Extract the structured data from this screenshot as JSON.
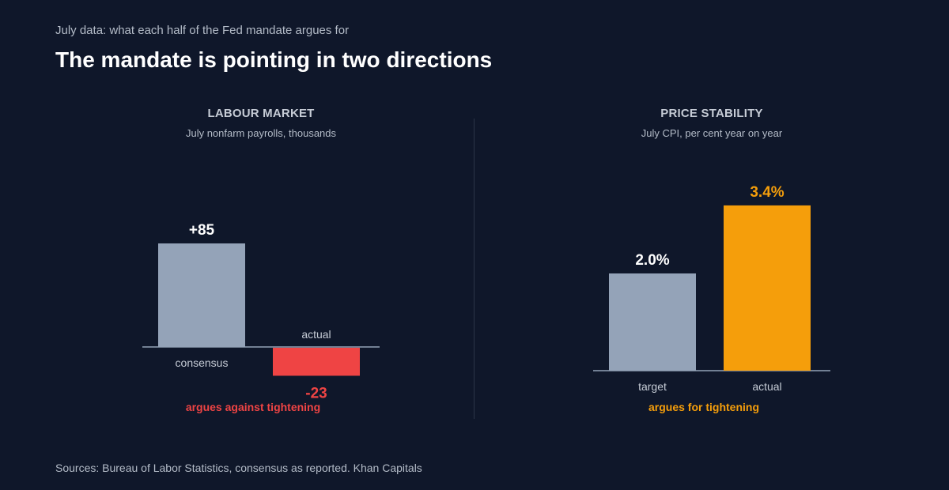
{
  "header": {
    "kicker": "July data: what each half of the Fed mandate argues for",
    "title": "The mandate is pointing in two directions"
  },
  "colors": {
    "background": "#0f172a",
    "neutral_bar": "#94a3b8",
    "negative": "#ef4444",
    "positive": "#f59e0b"
  },
  "chart_data": [
    {
      "type": "bar",
      "title": "LABOUR MARKET",
      "subtitle": "July nonfarm payrolls, thousands",
      "categories": [
        "consensus",
        "actual"
      ],
      "values": [
        85,
        -23
      ],
      "value_labels": [
        "+85",
        "-23"
      ],
      "bar_colors": [
        "#94a3b8",
        "#ef4444"
      ],
      "label_colors": [
        "#ffffff",
        "#ef4444"
      ],
      "verdict": "argues against tightening",
      "verdict_color": "#ef4444"
    },
    {
      "type": "bar",
      "title": "PRICE STABILITY",
      "subtitle": "July CPI, per cent year on year",
      "categories": [
        "target",
        "actual"
      ],
      "values": [
        2.0,
        3.4
      ],
      "value_labels": [
        "2.0%",
        "3.4%"
      ],
      "bar_colors": [
        "#94a3b8",
        "#f59e0b"
      ],
      "label_colors": [
        "#ffffff",
        "#f59e0b"
      ],
      "verdict": "argues for tightening",
      "verdict_color": "#f59e0b"
    }
  ],
  "footer": {
    "source": "Sources: Bureau of Labor Statistics, consensus as reported. Khan Capitals"
  }
}
